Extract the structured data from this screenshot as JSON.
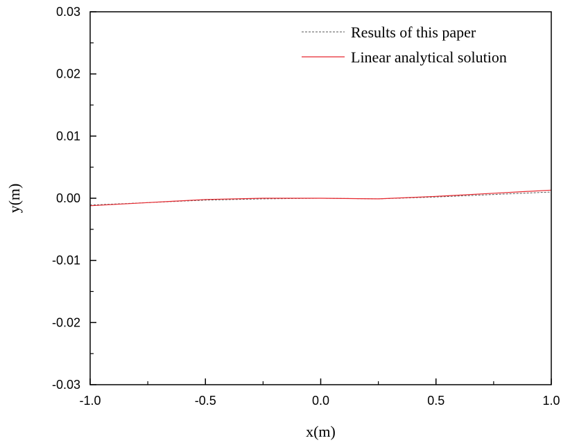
{
  "chart_data": {
    "type": "line",
    "xlabel": "x(m)",
    "ylabel": "y(m)",
    "xlim": [
      -1.0,
      1.0
    ],
    "ylim": [
      -0.03,
      0.03
    ],
    "xticks": [
      -1.0,
      -0.5,
      0.0,
      0.5,
      1.0
    ],
    "xtick_labels": [
      "-1.0",
      "-0.5",
      "0.0",
      "0.5",
      "1.0"
    ],
    "yticks": [
      -0.03,
      -0.02,
      -0.01,
      0.0,
      0.01,
      0.02,
      0.03
    ],
    "ytick_labels": [
      "-0.03",
      "-0.02",
      "-0.01",
      "0.00",
      "0.01",
      "0.02",
      "0.03"
    ],
    "grid": false,
    "legend_position": "top-right",
    "series": [
      {
        "name": "Results of this paper",
        "color": "#555555",
        "style": "dashed",
        "x": [
          -1.0,
          -0.75,
          -0.5,
          -0.25,
          0.0,
          0.25,
          0.5,
          0.75,
          1.0
        ],
        "y": [
          -0.0011,
          -0.0007,
          -0.0003,
          -0.0001,
          0.0,
          -0.0001,
          0.0002,
          0.0006,
          0.001
        ]
      },
      {
        "name": "Linear analytical solution",
        "color": "#e8262d",
        "style": "solid",
        "x": [
          -1.0,
          -0.75,
          -0.5,
          -0.25,
          0.0,
          0.25,
          0.5,
          0.75,
          1.0
        ],
        "y": [
          -0.0012,
          -0.0007,
          -0.0002,
          0.0,
          0.0,
          -0.0001,
          0.0003,
          0.0008,
          0.0013
        ]
      }
    ]
  }
}
